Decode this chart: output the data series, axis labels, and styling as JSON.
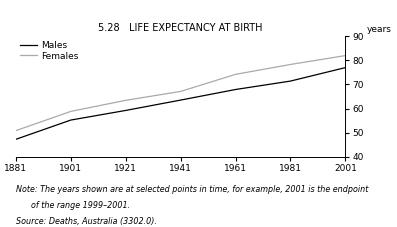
{
  "title": "5.28   LIFE EXPECTANCY AT BIRTH",
  "ylabel": "years",
  "years": [
    1881,
    1901,
    1921,
    1941,
    1961,
    1981,
    2001
  ],
  "males": [
    47.2,
    55.2,
    59.2,
    63.5,
    67.9,
    71.4,
    77.0
  ],
  "females": [
    50.8,
    58.8,
    63.4,
    67.1,
    74.2,
    78.3,
    82.0
  ],
  "males_color": "#000000",
  "females_color": "#aaaaaa",
  "xlim": [
    1881,
    2001
  ],
  "ylim": [
    40,
    90
  ],
  "yticks": [
    40,
    50,
    60,
    70,
    80,
    90
  ],
  "xticks": [
    1881,
    1901,
    1921,
    1941,
    1961,
    1981,
    2001
  ],
  "note_line1": "Note: The years shown are at selected points in time, for example, 2001 is the endpoint",
  "note_line2": "      of the range 1999–2001.",
  "source": "Source: Deaths, Australia (3302.0).",
  "bg_color": "#ffffff"
}
